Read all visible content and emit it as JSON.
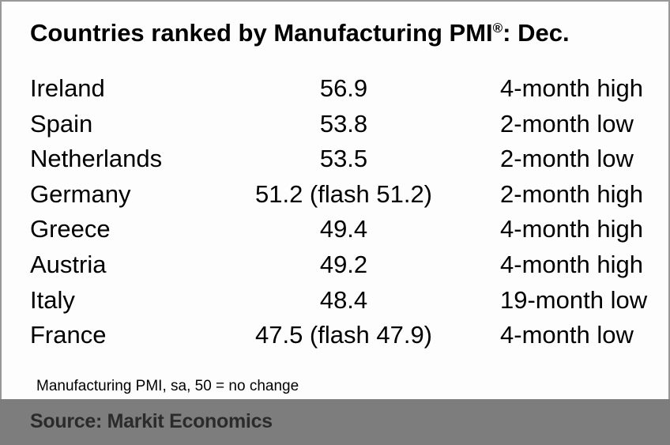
{
  "title": {
    "main": "Countries ranked by Manufacturing PMI",
    "registered": "®",
    "suffix": ": Dec."
  },
  "table": {
    "rows": [
      {
        "country": "Ireland",
        "value": "56.9",
        "status": "4-month high"
      },
      {
        "country": "Spain",
        "value": "53.8",
        "status": "2-month low"
      },
      {
        "country": "Netherlands",
        "value": "53.5",
        "status": "2-month low"
      },
      {
        "country": "Germany",
        "value": "51.2 (flash 51.2)",
        "status": "2-month high"
      },
      {
        "country": "Greece",
        "value": "49.4",
        "status": "4-month high"
      },
      {
        "country": "Austria",
        "value": "49.2",
        "status": "4-month high"
      },
      {
        "country": "Italy",
        "value": "48.4",
        "status": "19-month low"
      },
      {
        "country": "France",
        "value": "47.5 (flash 47.9)",
        "status": "4-month low"
      }
    ]
  },
  "note": "Manufacturing PMI, sa, 50 = no change",
  "footer": {
    "source": "Source: Markit Economics"
  },
  "colors": {
    "background": "#fdfdfd",
    "border": "#989898",
    "text": "#000000",
    "footer_background": "#7d7d7d",
    "footer_text": "#2b2b2b"
  },
  "chart_data": {
    "type": "table",
    "title": "Countries ranked by Manufacturing PMI®: Dec.",
    "categories": [
      "Ireland",
      "Spain",
      "Netherlands",
      "Germany",
      "Greece",
      "Austria",
      "Italy",
      "France"
    ],
    "values": [
      56.9,
      53.8,
      53.5,
      51.2,
      49.4,
      49.2,
      48.4,
      47.5
    ],
    "flash_values": {
      "Germany": 51.2,
      "France": 47.9
    },
    "status_labels": [
      "4-month high",
      "2-month low",
      "2-month low",
      "2-month high",
      "4-month high",
      "4-month high",
      "19-month low",
      "4-month low"
    ],
    "note": "Manufacturing PMI, sa, 50 = no change",
    "source": "Source: Markit Economics",
    "legend_position": "none",
    "grid": false
  }
}
